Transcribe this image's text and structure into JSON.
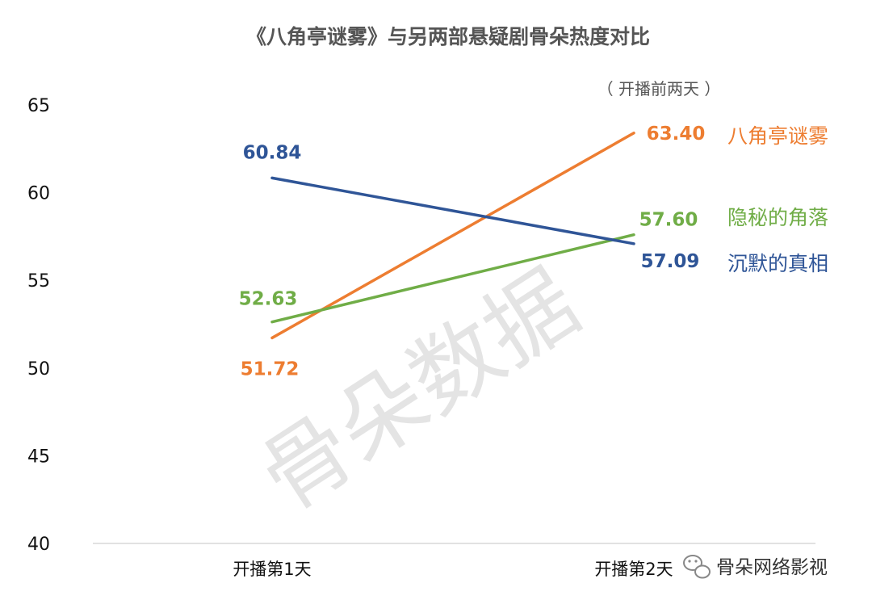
{
  "chart_data": {
    "type": "line",
    "title": "《八角亭谜雾》与另两部悬疑剧骨朵热度对比",
    "annotation": "（ 开播前两天 ）",
    "categories": [
      "开播第1天",
      "开播第2天"
    ],
    "ylim": [
      40,
      65
    ],
    "yticks": [
      "65",
      "60",
      "55",
      "50",
      "45",
      "40"
    ],
    "grid": false,
    "series": [
      {
        "name": "八角亭谜雾",
        "values": [
          51.72,
          63.4
        ],
        "labels": [
          "51.72",
          "63.40"
        ],
        "color": "#ED7D31"
      },
      {
        "name": "隐秘的角落",
        "values": [
          52.63,
          57.6
        ],
        "labels": [
          "52.63",
          "57.60"
        ],
        "color": "#70AD47"
      },
      {
        "name": "沉默的真相",
        "values": [
          60.84,
          57.09
        ],
        "labels": [
          "60.84",
          "57.09"
        ],
        "color": "#2F5597"
      }
    ],
    "watermark": "骨朵数据",
    "source": "骨朵网络影视"
  }
}
